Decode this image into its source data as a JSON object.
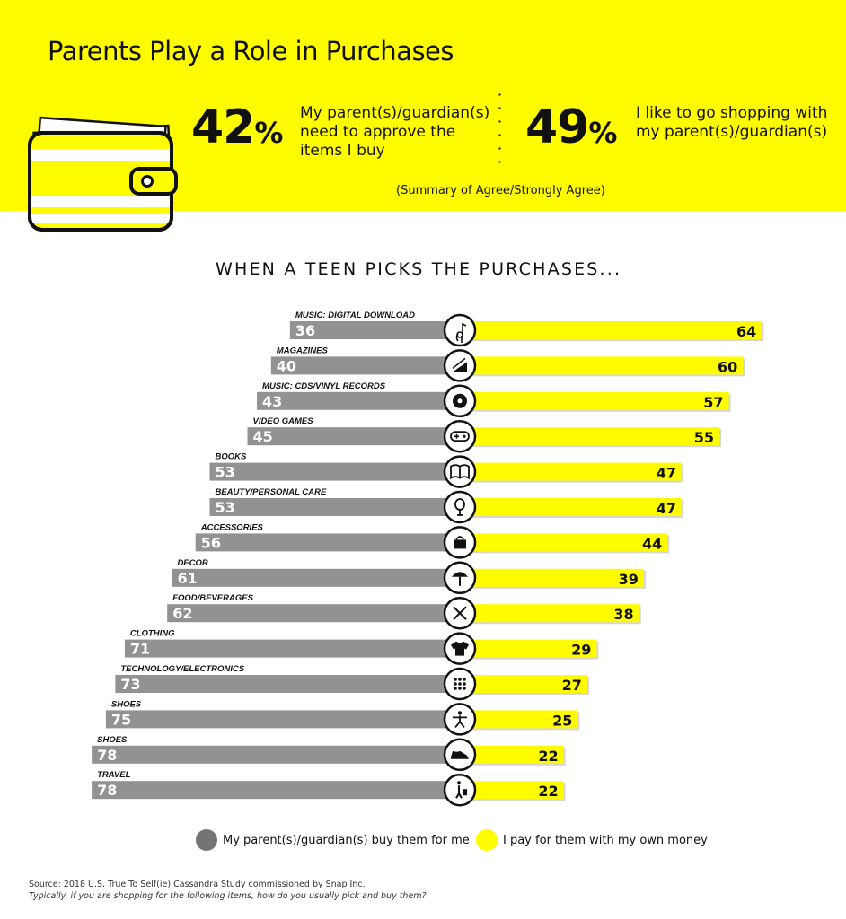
{
  "header": {
    "title": "Parents Play a Role in Purchases",
    "stat1": {
      "value": "42",
      "unit": "%",
      "text_lines": [
        "My parent(s)/guardian(s)",
        "need to approve the",
        "items I buy"
      ]
    },
    "stat2": {
      "value": "49",
      "unit": "%",
      "text_lines": [
        "I like to go shopping with",
        "my parent(s)/guardian(s)"
      ]
    },
    "summary": "(Summary of Agree/Strongly Agree)",
    "wallet_icon": "wallet-icon"
  },
  "colors": {
    "brand_yellow": "#fffc00",
    "bar_gray": "#929292",
    "text_dark": "#111111",
    "legend_gray": "#747474"
  },
  "chart_data": {
    "type": "bar",
    "title": "WHEN A TEEN PICKS THE PURCHASES...",
    "categories": [
      "MUSIC: DIGITAL DOWNLOAD",
      "MAGAZINES",
      "MUSIC: CDS/VINYL RECORDS",
      "VIDEO GAMES",
      "BOOKS",
      "BEAUTY/PERSONAL CARE",
      "ACCESSORIES",
      "DECOR",
      "FOOD/BEVERAGES",
      "CLOTHING",
      "TECHNOLOGY/ELECTRONICS",
      "SHOES",
      "SHOES",
      "TRAVEL"
    ],
    "icons": [
      "music-note-icon",
      "magazine-icon",
      "vinyl-record-icon",
      "game-controller-icon",
      "book-icon",
      "mirror-icon",
      "handbag-icon",
      "lamp-icon",
      "fork-knife-icon",
      "shirt-icon",
      "electronics-icon",
      "fitness-figure-icon",
      "sneaker-icon",
      "traveler-icon"
    ],
    "series": [
      {
        "name": "My parent(s)/guardian(s) buy them for me",
        "color": "#929292",
        "values": [
          36,
          40,
          43,
          45,
          53,
          53,
          56,
          61,
          62,
          71,
          73,
          75,
          78,
          78
        ]
      },
      {
        "name": "I pay for them with my own money",
        "color": "#fffc00",
        "values": [
          64,
          60,
          57,
          55,
          47,
          47,
          44,
          39,
          38,
          29,
          27,
          25,
          22,
          22
        ]
      }
    ],
    "ylim": [
      0,
      100
    ],
    "legend_position": "bottom"
  },
  "source": {
    "line1": "Source: 2018 U.S. True To Self(ie)  Cassandra Study commissioned by Snap Inc.",
    "line2": "Typically, if you are shopping for the following items, how do you usually pick and buy them?"
  }
}
